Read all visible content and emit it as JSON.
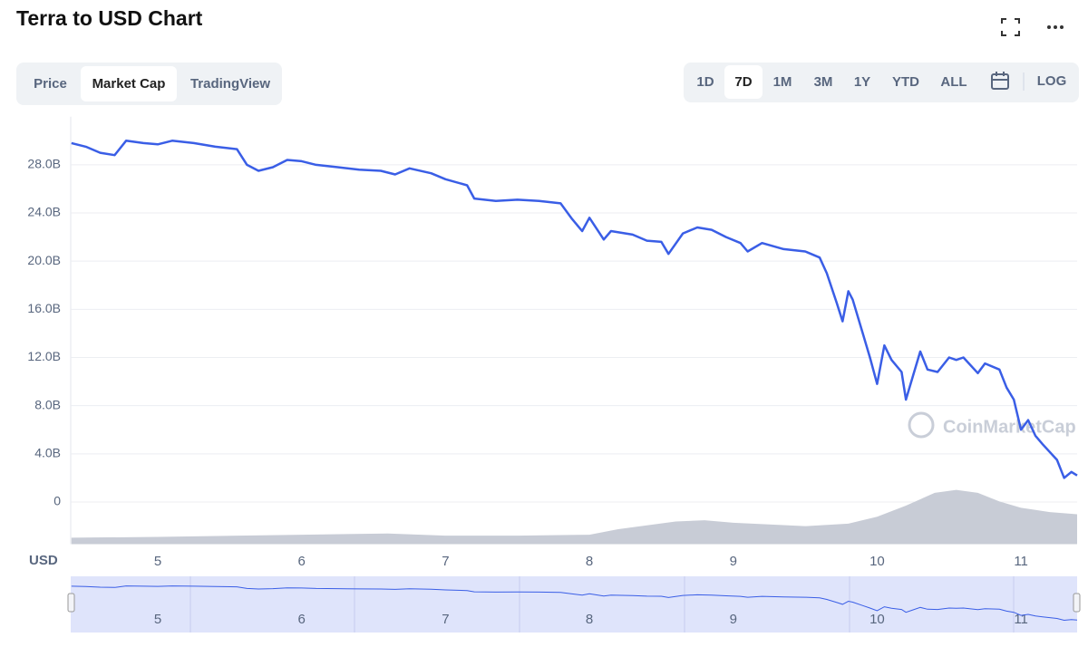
{
  "header": {
    "title": "Terra to USD Chart"
  },
  "tabs": {
    "items": [
      "Price",
      "Market Cap",
      "TradingView"
    ],
    "active": 1
  },
  "ranges": {
    "items": [
      "1D",
      "7D",
      "1M",
      "3M",
      "1Y",
      "YTD",
      "ALL"
    ],
    "active": 1,
    "log": "LOG"
  },
  "watermark": "CoinMarketCap",
  "chart_data": {
    "type": "line",
    "y_label": "USD",
    "color": "#3a5ee6",
    "grid": true,
    "x": [
      4.4,
      4.5,
      4.6,
      4.7,
      4.78,
      4.9,
      5.0,
      5.1,
      5.25,
      5.4,
      5.55,
      5.62,
      5.7,
      5.8,
      5.9,
      6.0,
      6.1,
      6.25,
      6.4,
      6.55,
      6.65,
      6.75,
      6.9,
      7.0,
      7.15,
      7.2,
      7.35,
      7.5,
      7.65,
      7.8,
      7.88,
      7.95,
      8.0,
      8.1,
      8.15,
      8.3,
      8.4,
      8.5,
      8.55,
      8.65,
      8.75,
      8.85,
      8.95,
      9.05,
      9.1,
      9.2,
      9.35,
      9.5,
      9.6,
      9.65,
      9.72,
      9.76,
      9.8,
      9.83,
      9.9,
      9.95,
      10.0,
      10.05,
      10.1,
      10.17,
      10.2,
      10.25,
      10.3,
      10.35,
      10.42,
      10.5,
      10.55,
      10.6,
      10.7,
      10.75,
      10.85,
      10.9,
      10.95,
      11.0,
      11.05,
      11.1,
      11.15,
      11.25,
      11.3,
      11.35,
      11.39
    ],
    "values": [
      29.8,
      29.5,
      29.0,
      28.8,
      30.0,
      29.8,
      29.7,
      30.0,
      29.8,
      29.5,
      29.3,
      28.0,
      27.5,
      27.8,
      28.4,
      28.3,
      28.0,
      27.8,
      27.6,
      27.5,
      27.2,
      27.7,
      27.3,
      26.8,
      26.3,
      25.2,
      25.0,
      25.1,
      25.0,
      24.8,
      23.5,
      22.5,
      23.6,
      21.8,
      22.5,
      22.2,
      21.7,
      21.6,
      20.6,
      22.3,
      22.8,
      22.6,
      22.0,
      21.5,
      20.8,
      21.5,
      21.0,
      20.8,
      20.3,
      19.0,
      16.5,
      15.0,
      17.5,
      16.8,
      14.0,
      12.0,
      9.8,
      13.0,
      11.8,
      10.8,
      8.5,
      10.5,
      12.5,
      11.0,
      10.8,
      12.0,
      11.8,
      12.0,
      10.7,
      11.5,
      11.0,
      9.5,
      8.5,
      6.0,
      6.8,
      5.5,
      4.8,
      3.5,
      2.0,
      2.5,
      2.2
    ],
    "volume": {
      "color": "#c8ccd6",
      "axis": "y2",
      "x": [
        4.4,
        5.0,
        6.0,
        6.6,
        7.0,
        7.5,
        8.0,
        8.2,
        8.6,
        8.8,
        9.0,
        9.5,
        9.8,
        10.0,
        10.2,
        10.4,
        10.55,
        10.7,
        10.85,
        11.0,
        11.2,
        11.39
      ],
      "values": [
        1.5,
        1.7,
        2.2,
        2.5,
        2.0,
        2.0,
        2.2,
        3.5,
        5.3,
        5.6,
        5.0,
        4.2,
        4.8,
        6.4,
        9.0,
        12.0,
        12.7,
        12.0,
        10.0,
        8.5,
        7.5,
        7.0
      ]
    },
    "xlim": [
      4.395,
      11.39
    ],
    "xticks": [
      5,
      6,
      7,
      8,
      9,
      10,
      11
    ],
    "ylim": [
      -3.5,
      32
    ],
    "yticks": [
      0,
      {
        "value": 4,
        "label": "4.0B"
      },
      {
        "value": 8,
        "label": "8.0B"
      },
      {
        "value": 12,
        "label": "12.0B"
      },
      {
        "value": 16,
        "label": "16.0B"
      },
      {
        "value": 20,
        "label": "20.0B"
      },
      {
        "value": 24,
        "label": "24.0B"
      },
      {
        "value": 28,
        "label": "28.0B"
      }
    ],
    "y2lim": [
      0,
      100
    ]
  }
}
